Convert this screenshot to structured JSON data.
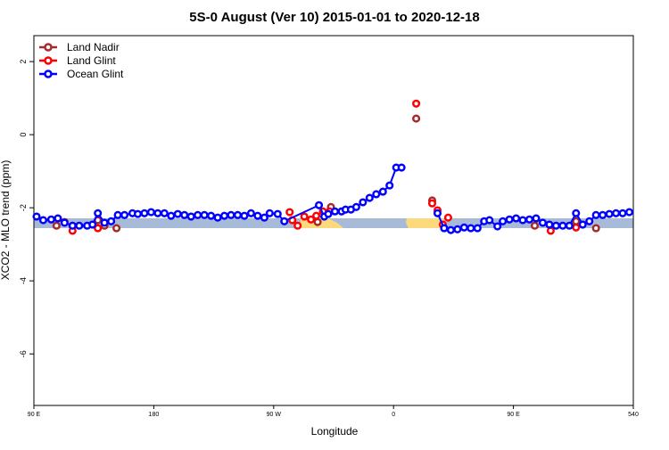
{
  "chart_data": {
    "type": "line",
    "title": "5S-0 August (Ver 10)   2015-01-01 to 2020-12-18",
    "x_label": "Longitude",
    "y_label": "XCO2 - MLO trend (ppm)",
    "xlim": [
      90,
      540
    ],
    "ylim": [
      -7.41,
      2.71
    ],
    "xticks": [
      {
        "value": 90,
        "label": "90 E"
      },
      180,
      {
        "value": 270,
        "label": "90 W"
      },
      {
        "value": 360,
        "label": "0"
      },
      {
        "value": 450,
        "label": "90 E"
      },
      540
    ],
    "yticks": [
      2,
      0,
      -2,
      -4,
      -6
    ],
    "grid": false,
    "legend": "top-left",
    "series": [
      {
        "name": "Land Nadir",
        "color": "#a52a2a",
        "line": false,
        "x": [
          107,
          113,
          138,
          143,
          152,
          303,
          313,
          377,
          389,
          466,
          497,
          512
        ],
        "values": [
          -2.49,
          -2.39,
          -2.34,
          -2.49,
          -2.56,
          -2.39,
          -1.98,
          0.44,
          -1.8,
          -2.49,
          -2.37,
          -2.56
        ]
      },
      {
        "name": "Land Glint",
        "color": "#ff0000",
        "line": false,
        "x": [
          119,
          138,
          282,
          284,
          288,
          293,
          298,
          302,
          307,
          312,
          377,
          389,
          393,
          397,
          401,
          478,
          497
        ],
        "values": [
          -2.63,
          -2.56,
          -2.12,
          -2.34,
          -2.49,
          -2.24,
          -2.32,
          -2.22,
          -2.1,
          -2.1,
          0.85,
          -1.88,
          -2.07,
          -2.46,
          -2.27,
          -2.63,
          -2.54
        ]
      },
      {
        "name": "Ocean Glint",
        "color": "#0000ff",
        "line": true,
        "x": [
          92,
          97,
          103,
          108,
          113,
          119,
          124,
          130,
          134,
          138,
          143,
          148,
          153,
          158,
          164,
          168,
          173,
          178,
          183,
          188,
          193,
          198,
          203,
          208,
          213,
          218,
          223,
          228,
          233,
          238,
          243,
          248,
          253,
          258,
          263,
          267,
          273,
          278,
          304,
          308,
          311,
          316,
          321,
          324,
          328,
          332,
          337,
          342,
          347,
          352,
          357,
          362,
          366,
          null,
          393,
          398,
          403,
          408,
          413,
          418,
          423,
          428,
          432,
          438,
          442,
          447,
          452,
          457,
          462,
          467,
          472,
          477,
          482,
          487,
          492,
          497,
          502,
          507,
          512,
          517,
          522,
          527,
          532,
          537
        ],
        "values": [
          -2.24,
          -2.34,
          -2.32,
          -2.29,
          -2.41,
          -2.49,
          -2.49,
          -2.49,
          -2.46,
          -2.15,
          -2.41,
          -2.37,
          -2.2,
          -2.2,
          -2.15,
          -2.17,
          -2.15,
          -2.12,
          -2.15,
          -2.15,
          -2.22,
          -2.17,
          -2.2,
          -2.24,
          -2.2,
          -2.2,
          -2.22,
          -2.27,
          -2.22,
          -2.2,
          -2.2,
          -2.22,
          -2.15,
          -2.22,
          -2.27,
          -2.15,
          -2.17,
          -2.37,
          -1.93,
          -2.24,
          -2.17,
          -2.1,
          -2.1,
          -2.05,
          -2.05,
          -1.98,
          -1.85,
          -1.73,
          -1.63,
          -1.56,
          -1.39,
          -0.9,
          -0.9,
          null,
          -2.15,
          -2.56,
          -2.61,
          -2.59,
          -2.54,
          -2.56,
          -2.56,
          -2.37,
          -2.34,
          -2.51,
          -2.37,
          -2.32,
          -2.29,
          -2.34,
          -2.32,
          -2.29,
          -2.41,
          -2.46,
          -2.49,
          -2.49,
          -2.49,
          -2.15,
          -2.46,
          -2.37,
          -2.2,
          -2.2,
          -2.17,
          -2.15,
          -2.15,
          -2.12
        ]
      }
    ]
  }
}
